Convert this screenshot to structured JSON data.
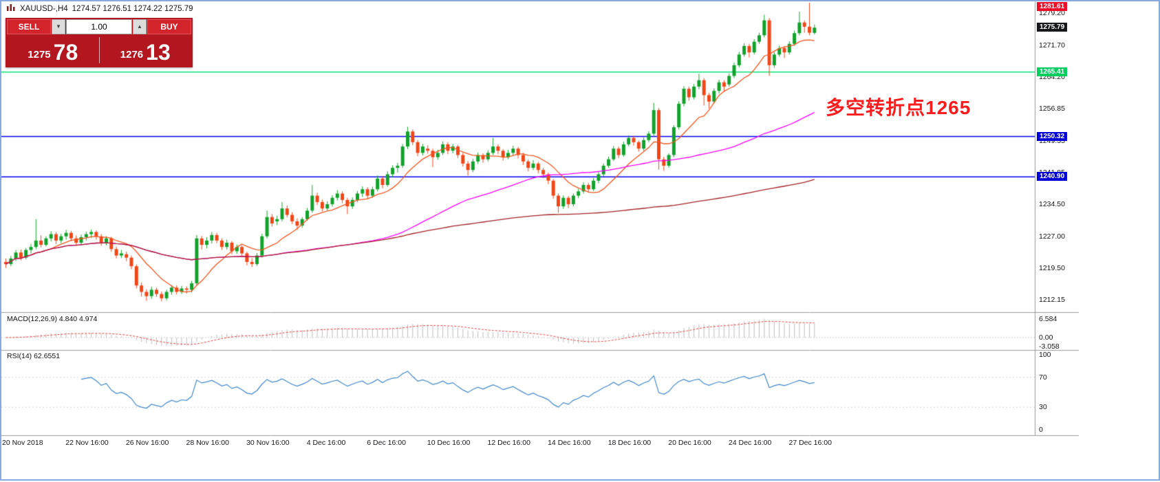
{
  "window": {
    "title_symbol": "XAUUSD-,H4",
    "title_ohlc": "1274.57 1276.51 1274.22 1275.79"
  },
  "trade_panel": {
    "sell_label": "SELL",
    "buy_label": "BUY",
    "volume": "1.00",
    "bid_small": "1275",
    "bid_big": "78",
    "ask_small": "1276",
    "ask_big": "13"
  },
  "annotation": {
    "text": "多空转折点1265",
    "color": "#fb1d1d"
  },
  "chart_data": {
    "type": "candlestick",
    "symbol": "XAUUSD-",
    "timeframe": "H4",
    "title": "XAUUSD-,H4 1274.57 1276.51 1274.22 1275.79",
    "last_ohlc": {
      "open": 1274.57,
      "high": 1276.51,
      "low": 1274.22,
      "close": 1275.79
    },
    "up_color": "#12a12b",
    "down_color": "#f04718",
    "y_axis": {
      "min": 1208.0,
      "max": 1282.5,
      "ticks": [
        "1279.20",
        "1271.70",
        "1264.20",
        "1256.85",
        "1249.35",
        "1241.85",
        "1234.50",
        "1227.00",
        "1219.50",
        "1212.15"
      ]
    },
    "x_ticks": [
      {
        "label": "20 Nov 2018",
        "idx": 0
      },
      {
        "label": "22 Nov 16:00",
        "idx": 16
      },
      {
        "label": "26 Nov 16:00",
        "idx": 28
      },
      {
        "label": "28 Nov 16:00",
        "idx": 40
      },
      {
        "label": "30 Nov 16:00",
        "idx": 52
      },
      {
        "label": "4 Dec 16:00",
        "idx": 64
      },
      {
        "label": "6 Dec 16:00",
        "idx": 76
      },
      {
        "label": "10 Dec 16:00",
        "idx": 88
      },
      {
        "label": "12 Dec 16:00",
        "idx": 100
      },
      {
        "label": "14 Dec 16:00",
        "idx": 112
      },
      {
        "label": "18 Dec 16:00",
        "idx": 124
      },
      {
        "label": "20 Dec 16:00",
        "idx": 136
      },
      {
        "label": "24 Dec 16:00",
        "idx": 148
      },
      {
        "label": "27 Dec 16:00",
        "idx": 160
      }
    ],
    "price_tags": [
      {
        "text": "1281.61",
        "price": 1281.61,
        "bg": "#f00c28"
      },
      {
        "text": "1275.79",
        "price": 1275.79,
        "bg": "#17181c"
      },
      {
        "text": "1265.41",
        "price": 1265.41,
        "bg": "#00cf60"
      },
      {
        "text": "1250.32",
        "price": 1250.32,
        "bg": "#0000d8"
      },
      {
        "text": "1240.90",
        "price": 1240.9,
        "bg": "#0000d8"
      }
    ],
    "overlays": {
      "ma_fast": {
        "period": 10,
        "color": "#f0561e"
      },
      "ma_mid": {
        "period": 55,
        "color": "#ff00ff"
      },
      "ma_slow": {
        "period": 160,
        "color": "#a32125"
      },
      "hlines": [
        {
          "price": 1265.41,
          "color": "#00e673",
          "label": "1265.41"
        },
        {
          "price": 1250.32,
          "color": "#0000ee",
          "label": "1250.32"
        },
        {
          "price": 1240.9,
          "color": "#0000ee",
          "label": "1240.90"
        }
      ]
    },
    "indicator_panels": [
      {
        "name": "MACD",
        "label": "MACD(12,26,9) 4.840 4.974",
        "params": [
          12,
          26,
          9
        ],
        "values": [
          4.84,
          4.974
        ],
        "ticks": [
          "6.584",
          "0.00",
          "-3.058"
        ]
      },
      {
        "name": "RSI",
        "label": "RSI(14) 62.6551",
        "period": 14,
        "value": 62.6551,
        "ticks": [
          "100",
          "70",
          "30",
          "0"
        ],
        "levels": [
          70,
          30
        ]
      }
    ],
    "candles": [
      [
        1221.0,
        1221.8,
        1219.6,
        1220.5
      ],
      [
        1220.5,
        1222.4,
        1220.0,
        1221.8
      ],
      [
        1221.8,
        1223.8,
        1221.2,
        1223.2
      ],
      [
        1223.2,
        1223.9,
        1221.4,
        1222.0
      ],
      [
        1222.0,
        1224.3,
        1221.6,
        1223.8
      ],
      [
        1223.8,
        1225.2,
        1223.0,
        1224.5
      ],
      [
        1224.5,
        1231.0,
        1224.0,
        1226.0
      ],
      [
        1226.0,
        1227.2,
        1224.4,
        1225.0
      ],
      [
        1225.0,
        1227.0,
        1224.6,
        1226.5
      ],
      [
        1226.5,
        1228.2,
        1225.8,
        1227.5
      ],
      [
        1227.5,
        1228.0,
        1225.2,
        1226.0
      ],
      [
        1226.0,
        1227.6,
        1225.4,
        1227.0
      ],
      [
        1227.0,
        1228.5,
        1226.2,
        1227.8
      ],
      [
        1227.8,
        1228.3,
        1225.9,
        1226.5
      ],
      [
        1226.5,
        1227.2,
        1224.8,
        1225.5
      ],
      [
        1225.5,
        1227.4,
        1225.0,
        1226.8
      ],
      [
        1226.8,
        1228.1,
        1226.0,
        1227.5
      ],
      [
        1227.5,
        1228.6,
        1226.6,
        1228.0
      ],
      [
        1228.0,
        1228.4,
        1226.2,
        1227.0
      ],
      [
        1227.0,
        1227.5,
        1224.8,
        1225.5
      ],
      [
        1225.5,
        1227.0,
        1224.9,
        1226.5
      ],
      [
        1226.5,
        1226.9,
        1223.4,
        1224.0
      ],
      [
        1224.0,
        1224.6,
        1221.8,
        1222.5
      ],
      [
        1222.5,
        1223.8,
        1221.9,
        1223.0
      ],
      [
        1222.8,
        1223.4,
        1221.2,
        1222.0
      ],
      [
        1222.0,
        1222.5,
        1219.3,
        1220.0
      ],
      [
        1220.0,
        1220.4,
        1214.8,
        1215.5
      ],
      [
        1215.5,
        1216.2,
        1212.9,
        1214.0
      ],
      [
        1214.0,
        1214.6,
        1211.9,
        1213.0
      ],
      [
        1213.0,
        1215.2,
        1212.4,
        1214.5
      ],
      [
        1214.5,
        1215.0,
        1212.8,
        1213.5
      ],
      [
        1213.5,
        1214.1,
        1211.8,
        1212.5
      ],
      [
        1212.5,
        1214.5,
        1212.0,
        1214.0
      ],
      [
        1214.0,
        1215.6,
        1213.3,
        1215.0
      ],
      [
        1215.0,
        1215.5,
        1213.4,
        1214.0
      ],
      [
        1214.0,
        1215.4,
        1213.5,
        1214.8
      ],
      [
        1214.8,
        1215.3,
        1213.6,
        1214.5
      ],
      [
        1214.5,
        1216.6,
        1213.9,
        1216.0
      ],
      [
        1216.0,
        1227.3,
        1215.5,
        1226.5
      ],
      [
        1226.5,
        1227.1,
        1223.9,
        1225.0
      ],
      [
        1225.0,
        1226.8,
        1224.2,
        1226.0
      ],
      [
        1226.0,
        1228.0,
        1225.3,
        1227.3
      ],
      [
        1227.3,
        1227.8,
        1225.4,
        1226.0
      ],
      [
        1226.0,
        1226.5,
        1223.8,
        1224.5
      ],
      [
        1224.5,
        1226.2,
        1223.9,
        1225.5
      ],
      [
        1225.5,
        1225.9,
        1222.8,
        1223.5
      ],
      [
        1223.5,
        1225.1,
        1222.9,
        1224.5
      ],
      [
        1224.5,
        1224.9,
        1222.3,
        1223.0
      ],
      [
        1223.0,
        1223.4,
        1220.2,
        1221.0
      ],
      [
        1221.0,
        1221.9,
        1219.8,
        1220.5
      ],
      [
        1220.5,
        1223.1,
        1220.1,
        1222.5
      ],
      [
        1222.5,
        1227.6,
        1222.0,
        1227.0
      ],
      [
        1227.0,
        1233.0,
        1226.5,
        1231.5
      ],
      [
        1231.5,
        1232.2,
        1229.3,
        1230.0
      ],
      [
        1230.5,
        1231.8,
        1229.6,
        1231.0
      ],
      [
        1231.0,
        1235.0,
        1230.5,
        1233.5
      ],
      [
        1233.5,
        1234.2,
        1231.4,
        1232.0
      ],
      [
        1232.0,
        1232.6,
        1229.9,
        1230.5
      ],
      [
        1230.5,
        1231.2,
        1228.5,
        1229.5
      ],
      [
        1229.5,
        1231.5,
        1229.0,
        1231.0
      ],
      [
        1231.0,
        1233.6,
        1230.6,
        1233.0
      ],
      [
        1233.0,
        1239.0,
        1232.5,
        1236.5
      ],
      [
        1236.5,
        1237.2,
        1234.3,
        1235.0
      ],
      [
        1235.0,
        1235.6,
        1232.8,
        1233.5
      ],
      [
        1233.5,
        1235.2,
        1233.0,
        1234.5
      ],
      [
        1234.5,
        1236.6,
        1233.9,
        1236.0
      ],
      [
        1236.0,
        1237.8,
        1235.4,
        1237.0
      ],
      [
        1237.0,
        1237.5,
        1234.7,
        1235.5
      ],
      [
        1235.5,
        1236.0,
        1232.2,
        1234.0
      ],
      [
        1234.0,
        1236.1,
        1233.4,
        1235.5
      ],
      [
        1235.5,
        1237.6,
        1235.0,
        1237.0
      ],
      [
        1237.0,
        1238.7,
        1236.2,
        1238.0
      ],
      [
        1238.0,
        1238.5,
        1235.7,
        1236.5
      ],
      [
        1236.5,
        1238.6,
        1236.0,
        1238.0
      ],
      [
        1238.0,
        1241.2,
        1237.5,
        1240.5
      ],
      [
        1240.5,
        1241.1,
        1238.2,
        1239.0
      ],
      [
        1239.0,
        1242.2,
        1238.6,
        1241.5
      ],
      [
        1241.5,
        1243.6,
        1240.8,
        1243.0
      ],
      [
        1243.0,
        1244.2,
        1241.9,
        1243.5
      ],
      [
        1243.5,
        1248.6,
        1243.0,
        1248.0
      ],
      [
        1248.0,
        1252.6,
        1247.4,
        1251.5
      ],
      [
        1251.5,
        1252.0,
        1248.3,
        1249.0
      ],
      [
        1249.0,
        1249.5,
        1245.7,
        1246.5
      ],
      [
        1246.5,
        1248.6,
        1245.9,
        1248.0
      ],
      [
        1247.5,
        1248.3,
        1246.3,
        1247.0
      ],
      [
        1247.0,
        1247.5,
        1243.2,
        1245.5
      ],
      [
        1245.5,
        1247.2,
        1244.9,
        1246.5
      ],
      [
        1246.5,
        1249.2,
        1246.0,
        1248.5
      ],
      [
        1248.5,
        1249.0,
        1246.2,
        1247.0
      ],
      [
        1247.0,
        1248.6,
        1246.4,
        1248.0
      ],
      [
        1248.0,
        1248.4,
        1245.3,
        1246.0
      ],
      [
        1246.0,
        1246.5,
        1243.3,
        1244.0
      ],
      [
        1244.0,
        1244.6,
        1241.2,
        1242.5
      ],
      [
        1242.5,
        1245.1,
        1242.0,
        1244.5
      ],
      [
        1244.5,
        1246.6,
        1243.9,
        1246.0
      ],
      [
        1246.0,
        1246.4,
        1244.2,
        1245.0
      ],
      [
        1245.0,
        1247.1,
        1244.5,
        1246.5
      ],
      [
        1246.5,
        1250.0,
        1246.0,
        1248.0
      ],
      [
        1248.0,
        1248.5,
        1246.2,
        1247.0
      ],
      [
        1247.0,
        1247.4,
        1244.7,
        1245.5
      ],
      [
        1245.5,
        1247.2,
        1245.0,
        1246.5
      ],
      [
        1246.5,
        1248.2,
        1245.9,
        1247.5
      ],
      [
        1247.5,
        1247.9,
        1245.2,
        1246.0
      ],
      [
        1246.0,
        1246.5,
        1243.7,
        1244.5
      ],
      [
        1244.5,
        1245.0,
        1242.2,
        1243.0
      ],
      [
        1243.0,
        1244.8,
        1242.5,
        1244.0
      ],
      [
        1244.0,
        1244.4,
        1241.7,
        1242.5
      ],
      [
        1242.5,
        1243.0,
        1240.6,
        1241.5
      ],
      [
        1241.5,
        1241.9,
        1239.2,
        1240.0
      ],
      [
        1240.0,
        1240.4,
        1235.8,
        1236.5
      ],
      [
        1236.5,
        1237.0,
        1232.5,
        1234.0
      ],
      [
        1234.0,
        1236.6,
        1233.4,
        1236.0
      ],
      [
        1236.0,
        1236.4,
        1233.6,
        1234.5
      ],
      [
        1234.5,
        1237.0,
        1234.0,
        1236.5
      ],
      [
        1236.5,
        1238.1,
        1235.9,
        1237.5
      ],
      [
        1237.5,
        1239.6,
        1237.0,
        1239.0
      ],
      [
        1239.0,
        1239.5,
        1237.2,
        1238.0
      ],
      [
        1238.0,
        1240.6,
        1237.6,
        1240.0
      ],
      [
        1240.0,
        1242.1,
        1239.4,
        1241.5
      ],
      [
        1241.5,
        1244.0,
        1241.0,
        1243.5
      ],
      [
        1243.5,
        1245.6,
        1243.0,
        1245.0
      ],
      [
        1245.0,
        1248.1,
        1244.6,
        1247.5
      ],
      [
        1247.5,
        1248.0,
        1245.3,
        1246.0
      ],
      [
        1246.0,
        1249.1,
        1245.6,
        1248.5
      ],
      [
        1248.5,
        1250.6,
        1248.0,
        1250.0
      ],
      [
        1250.0,
        1250.5,
        1248.2,
        1249.0
      ],
      [
        1249.0,
        1249.4,
        1246.8,
        1247.5
      ],
      [
        1247.5,
        1250.1,
        1247.0,
        1249.5
      ],
      [
        1249.5,
        1251.6,
        1249.0,
        1251.0
      ],
      [
        1251.0,
        1258.2,
        1250.5,
        1256.5
      ],
      [
        1256.5,
        1257.0,
        1242.6,
        1245.0
      ],
      [
        1245.0,
        1245.6,
        1242.3,
        1243.5
      ],
      [
        1243.5,
        1246.4,
        1243.0,
        1246.0
      ],
      [
        1246.0,
        1253.0,
        1245.5,
        1252.5
      ],
      [
        1252.5,
        1258.6,
        1252.0,
        1258.0
      ],
      [
        1258.0,
        1262.1,
        1257.4,
        1261.5
      ],
      [
        1261.5,
        1262.0,
        1258.7,
        1259.5
      ],
      [
        1259.5,
        1262.6,
        1259.0,
        1262.0
      ],
      [
        1262.0,
        1265.0,
        1261.4,
        1263.5
      ],
      [
        1263.5,
        1264.0,
        1257.6,
        1260.0
      ],
      [
        1260.0,
        1260.5,
        1256.9,
        1258.5
      ],
      [
        1258.5,
        1261.6,
        1258.0,
        1261.0
      ],
      [
        1261.0,
        1263.6,
        1260.4,
        1263.0
      ],
      [
        1263.0,
        1263.5,
        1260.8,
        1262.0
      ],
      [
        1262.5,
        1265.1,
        1262.0,
        1264.5
      ],
      [
        1264.5,
        1267.6,
        1264.0,
        1267.0
      ],
      [
        1267.0,
        1270.1,
        1266.5,
        1269.5
      ],
      [
        1269.5,
        1272.1,
        1269.0,
        1271.5
      ],
      [
        1271.5,
        1272.0,
        1268.8,
        1270.0
      ],
      [
        1270.0,
        1273.1,
        1269.5,
        1272.5
      ],
      [
        1272.5,
        1274.6,
        1272.0,
        1274.0
      ],
      [
        1274.0,
        1278.8,
        1273.5,
        1277.5
      ],
      [
        1277.5,
        1278.0,
        1264.5,
        1267.0
      ],
      [
        1267.0,
        1270.1,
        1266.4,
        1269.5
      ],
      [
        1269.5,
        1271.6,
        1269.0,
        1271.0
      ],
      [
        1271.0,
        1271.5,
        1268.7,
        1270.0
      ],
      [
        1270.0,
        1272.6,
        1269.5,
        1272.0
      ],
      [
        1272.0,
        1275.1,
        1271.5,
        1274.5
      ],
      [
        1274.5,
        1279.5,
        1274.0,
        1277.0
      ],
      [
        1277.0,
        1277.5,
        1274.6,
        1276.0
      ],
      [
        1276.0,
        1281.6,
        1274.0,
        1274.6
      ],
      [
        1274.57,
        1276.51,
        1274.22,
        1275.79
      ]
    ]
  }
}
